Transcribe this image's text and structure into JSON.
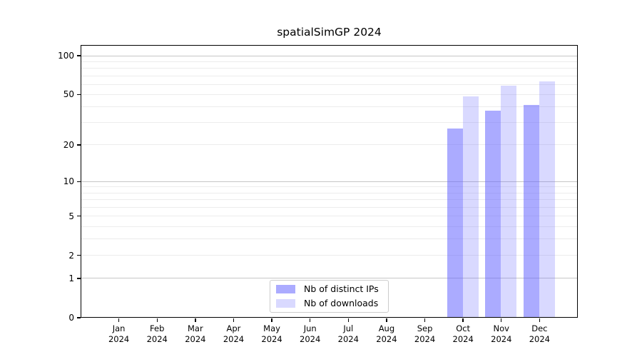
{
  "title": "spatialSimGP 2024",
  "legend": {
    "entries": [
      {
        "label": "Nb of distinct IPs"
      },
      {
        "label": "Nb of downloads"
      }
    ]
  },
  "colors": {
    "distinct_ips_bar": "#6666FF8C",
    "downloads_bar": "#6666FF40",
    "decade_gridline": "#C6C6C6",
    "minor_gridline": "#ECECEC",
    "axis": "#000000"
  },
  "chart_data": {
    "type": "bar",
    "title": "spatialSimGP 2024",
    "categories": [
      {
        "month": "Jan",
        "year": "2024"
      },
      {
        "month": "Feb",
        "year": "2024"
      },
      {
        "month": "Mar",
        "year": "2024"
      },
      {
        "month": "Apr",
        "year": "2024"
      },
      {
        "month": "May",
        "year": "2024"
      },
      {
        "month": "Jun",
        "year": "2024"
      },
      {
        "month": "Jul",
        "year": "2024"
      },
      {
        "month": "Aug",
        "year": "2024"
      },
      {
        "month": "Sep",
        "year": "2024"
      },
      {
        "month": "Oct",
        "year": "2024"
      },
      {
        "month": "Nov",
        "year": "2024"
      },
      {
        "month": "Dec",
        "year": "2024"
      }
    ],
    "series": [
      {
        "name": "Nb of distinct IPs",
        "color": "#6666FF8C",
        "values": [
          null,
          null,
          null,
          null,
          null,
          null,
          null,
          null,
          null,
          27,
          37,
          41
        ]
      },
      {
        "name": "Nb of downloads",
        "color": "#6666FF40",
        "values": [
          null,
          null,
          null,
          null,
          null,
          null,
          null,
          null,
          null,
          48,
          58,
          63
        ]
      }
    ],
    "xlabel": "",
    "ylabel": "",
    "y_axis": {
      "scale": "log10(1+x)",
      "tick_values": [
        0,
        1,
        2,
        5,
        10,
        20,
        50,
        100
      ],
      "top_value": 121
    },
    "grid": {
      "decade_lines": [
        1,
        10,
        100
      ],
      "minor_multipliers": [
        2,
        3,
        4,
        5,
        6,
        7,
        8,
        9
      ],
      "grid_on": true
    },
    "legend_position": "lower center"
  }
}
